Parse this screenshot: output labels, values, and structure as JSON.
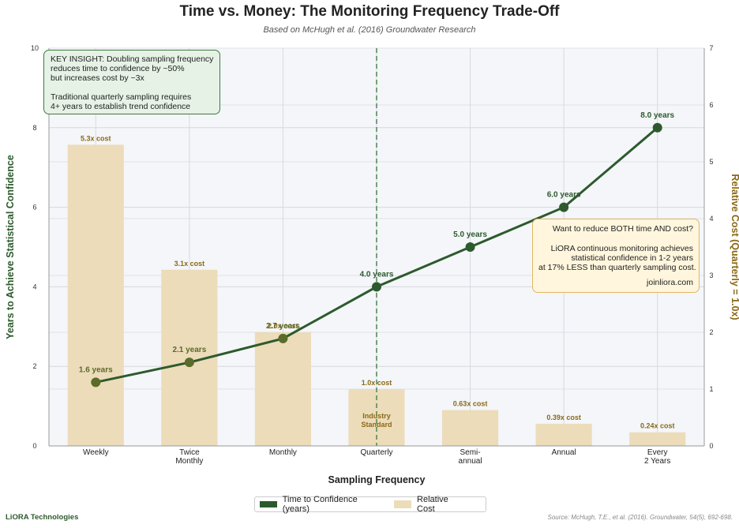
{
  "title": "Time vs. Money: The Monitoring Frequency Trade-Off",
  "subtitle": "Based on McHugh et al. (2016) Groundwater Research",
  "insight": {
    "lines": [
      "KEY INSIGHT: Doubling sampling frequency",
      "reduces time to confidence by ~50%",
      "but increases cost by ~3x",
      "",
      "Traditional quarterly sampling requires",
      "4+ years to establish trend confidence"
    ]
  },
  "cta": {
    "line1": "Want to reduce BOTH time AND cost?",
    "line2": "LiORA continuous monitoring achieves",
    "line3": "statistical confidence in 1-2 years",
    "line4": "at 17% LESS than quarterly sampling cost.",
    "line5": "joinliora.com"
  },
  "legend": {
    "line_label": "Time to Confidence (years)",
    "bar_label": "Relative Cost"
  },
  "brand": "LiORA Technologies",
  "source": "Source: McHugh, T.E., et al. (2016). Groundwater, 54(5), 692-698.",
  "colors": {
    "line": "#2d5a2d",
    "bar": "#ecdcba",
    "bar_label": "#8b6914",
    "marker_light": "#5a6b2a",
    "vline": "#5a8a5a",
    "cost_axis": "#8b6914"
  },
  "chart_data": {
    "type": "bar+line",
    "categories": [
      "Weekly",
      "Twice\nMonthly",
      "Monthly",
      "Quarterly",
      "Semi-\nannual",
      "Annual",
      "Every\n2 Years"
    ],
    "xlabel": "Sampling Frequency",
    "ylabel_left": "Years to Achieve Statistical Confidence",
    "ylabel_right": "Relative Cost (Quarterly = 1.0x)",
    "ylim_left": [
      0,
      10
    ],
    "ylim_right": [
      0,
      7
    ],
    "yticks_left": [
      0,
      2,
      4,
      6,
      8,
      10
    ],
    "yticks_right": [
      0,
      1,
      2,
      3,
      4,
      5,
      6,
      7
    ],
    "grid": true,
    "legend_position": "bottom-center",
    "line_series": {
      "name": "Time to Confidence (years)",
      "values": [
        1.6,
        2.1,
        2.7,
        4.0,
        5.0,
        6.0,
        8.0
      ],
      "labels": [
        "1.6 years",
        "2.1 years",
        "2.7 years",
        "4.0 years",
        "5.0 years",
        "6.0 years",
        "8.0 years"
      ]
    },
    "bar_series": {
      "name": "Relative Cost",
      "values": [
        5.3,
        3.1,
        2.0,
        1.0,
        0.63,
        0.39,
        0.24
      ],
      "labels": [
        "5.3x cost",
        "3.1x cost",
        "2.0x cost",
        "1.0x cost",
        "0.63x cost",
        "0.39x cost",
        "0.24x cost"
      ]
    },
    "annotations": [
      {
        "category": "Quarterly",
        "text": "Industry\nStandard",
        "type": "reference-line"
      }
    ]
  }
}
